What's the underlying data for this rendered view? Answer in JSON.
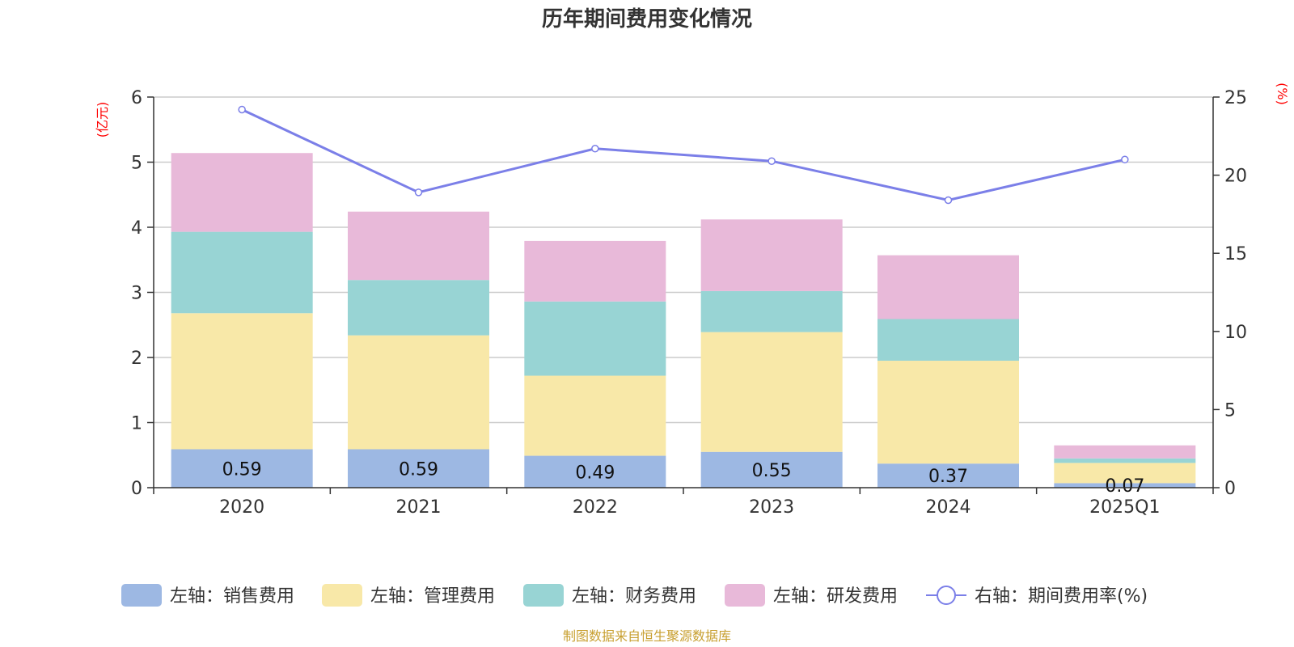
{
  "chart_data": {
    "type": "bar",
    "stacked": true,
    "title": "历年期间费用变化情况",
    "categories": [
      "2020",
      "2021",
      "2022",
      "2023",
      "2024",
      "2025Q1"
    ],
    "y_left": {
      "unit": "(亿元)",
      "ylim": [
        0,
        6
      ],
      "ticks": [
        "0",
        "1",
        "2",
        "3",
        "4",
        "5",
        "6"
      ]
    },
    "y_right": {
      "unit": "(%)",
      "ylim": [
        0,
        25
      ],
      "ticks": [
        "0",
        "5",
        "10",
        "15",
        "20",
        "25"
      ]
    },
    "series": [
      {
        "name": "左轴：销售费用",
        "type": "bar",
        "axis": "left",
        "color": "#9db8e3",
        "values": [
          0.59,
          0.59,
          0.49,
          0.55,
          0.37,
          0.07
        ],
        "labels": [
          "0.59",
          "0.59",
          "0.49",
          "0.55",
          "0.37",
          "0.07"
        ]
      },
      {
        "name": "左轴：管理费用",
        "type": "bar",
        "axis": "left",
        "color": "#f8e8a8",
        "values": [
          2.09,
          1.75,
          1.23,
          1.84,
          1.58,
          0.31
        ]
      },
      {
        "name": "左轴：财务费用",
        "type": "bar",
        "axis": "left",
        "color": "#98d4d4",
        "values": [
          1.25,
          0.85,
          1.14,
          0.63,
          0.64,
          0.07
        ]
      },
      {
        "name": "左轴：研发费用",
        "type": "bar",
        "axis": "left",
        "color": "#e8b9d9",
        "values": [
          1.21,
          1.05,
          0.93,
          1.1,
          0.98,
          0.2
        ]
      },
      {
        "name": "右轴：期间费用率(%)",
        "type": "line",
        "axis": "right",
        "color": "#7b7fe8",
        "values": [
          24.2,
          18.9,
          21.7,
          20.9,
          18.4,
          21.0
        ]
      }
    ],
    "grid": true,
    "legend_position": "bottom"
  },
  "footer": {
    "source": "制图数据来自恒生聚源数据库"
  }
}
